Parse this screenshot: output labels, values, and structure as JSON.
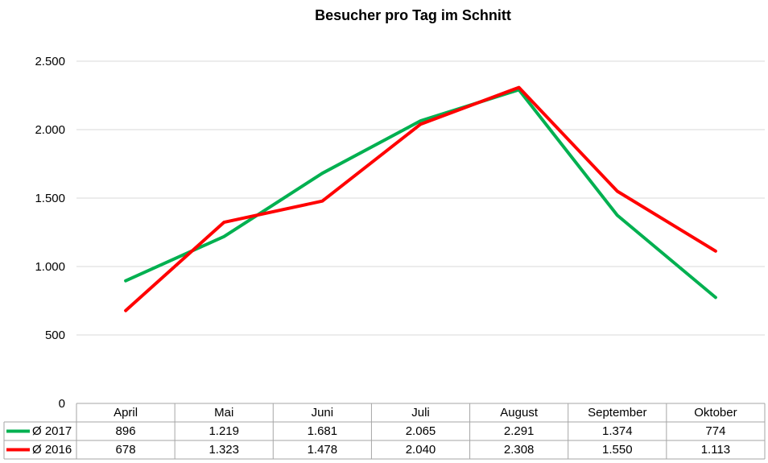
{
  "chart_data": {
    "type": "line",
    "title": "Besucher pro Tag im Schnitt",
    "xlabel": "",
    "ylabel": "",
    "categories": [
      "April",
      "Mai",
      "Juni",
      "Juli",
      "August",
      "September",
      "Oktober"
    ],
    "ylim": [
      0,
      2500
    ],
    "yticks": [
      0,
      500,
      1000,
      1500,
      2000,
      2500
    ],
    "ytick_labels": [
      "0",
      "500",
      "1.000",
      "1.500",
      "2.000",
      "2.500"
    ],
    "grid": true,
    "legend": "data-table-left",
    "series": [
      {
        "name": "Ø 2017",
        "color": "#00b050",
        "values": [
          896,
          1219,
          1681,
          2065,
          2291,
          1374,
          774
        ],
        "labels": [
          "896",
          "1.219",
          "1.681",
          "2.065",
          "2.291",
          "1.374",
          "774"
        ]
      },
      {
        "name": "Ø 2016",
        "color": "#ff0000",
        "values": [
          678,
          1323,
          1478,
          2040,
          2308,
          1550,
          1113
        ],
        "labels": [
          "678",
          "1.323",
          "1.478",
          "2.040",
          "2.308",
          "1.550",
          "1.113"
        ]
      }
    ]
  }
}
